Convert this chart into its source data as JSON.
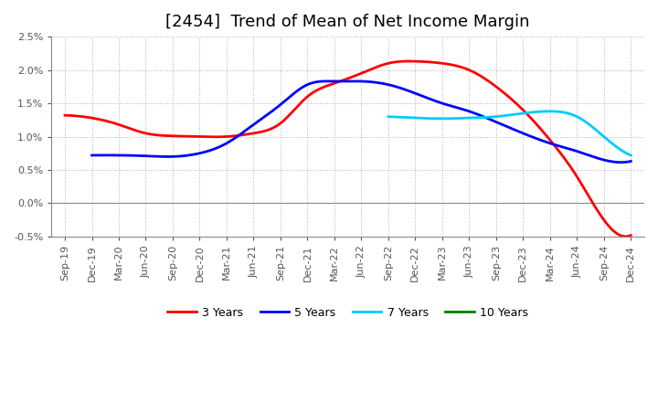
{
  "title": "[2454]  Trend of Mean of Net Income Margin",
  "ylim": [
    -0.005,
    0.025
  ],
  "yticks": [
    -0.005,
    0.0,
    0.005,
    0.01,
    0.015,
    0.02,
    0.025
  ],
  "ytick_labels": [
    "-0.5%",
    "0.0%",
    "0.5%",
    "1.0%",
    "1.5%",
    "2.0%",
    "2.5%"
  ],
  "x_labels": [
    "Sep-19",
    "Dec-19",
    "Mar-20",
    "Jun-20",
    "Sep-20",
    "Dec-20",
    "Mar-21",
    "Jun-21",
    "Sep-21",
    "Dec-21",
    "Mar-22",
    "Jun-22",
    "Sep-22",
    "Dec-22",
    "Mar-23",
    "Jun-23",
    "Sep-23",
    "Dec-23",
    "Mar-24",
    "Jun-24",
    "Sep-24",
    "Dec-24"
  ],
  "series": {
    "3 Years": {
      "color": "#FF0000",
      "linewidth": 2.0,
      "values": [
        0.0132,
        0.0128,
        0.0118,
        0.0105,
        0.0101,
        0.01,
        0.01,
        0.0105,
        0.012,
        0.016,
        0.018,
        0.0195,
        0.021,
        0.0213,
        0.021,
        0.02,
        0.0175,
        0.014,
        0.0095,
        0.004,
        -0.0025,
        -0.0048
      ]
    },
    "5 Years": {
      "color": "#0000FF",
      "linewidth": 2.0,
      "values": [
        null,
        0.0072,
        0.0072,
        0.0071,
        0.007,
        0.0075,
        0.009,
        0.0118,
        0.0148,
        0.0178,
        0.0183,
        0.0183,
        0.0178,
        0.0165,
        0.015,
        0.0138,
        0.0122,
        0.0105,
        0.009,
        0.0078,
        0.0065,
        0.0063
      ]
    },
    "7 Years": {
      "color": "#00CCFF",
      "linewidth": 2.0,
      "values": [
        null,
        null,
        null,
        null,
        null,
        null,
        null,
        null,
        null,
        null,
        null,
        null,
        0.013,
        0.0128,
        0.0127,
        0.0128,
        0.013,
        0.0135,
        0.0138,
        0.013,
        0.01,
        0.0072
      ]
    },
    "10 Years": {
      "color": "#008000",
      "linewidth": 2.0,
      "values": [
        null,
        null,
        null,
        null,
        null,
        null,
        null,
        null,
        null,
        null,
        null,
        null,
        null,
        null,
        null,
        null,
        null,
        null,
        null,
        null,
        null,
        null
      ]
    }
  },
  "background_color": "#FFFFFF",
  "plot_bg_color": "#FFFFFF",
  "grid_color": "#AAAAAA",
  "title_fontsize": 13,
  "tick_fontsize": 8.0,
  "legend_fontsize": 9
}
